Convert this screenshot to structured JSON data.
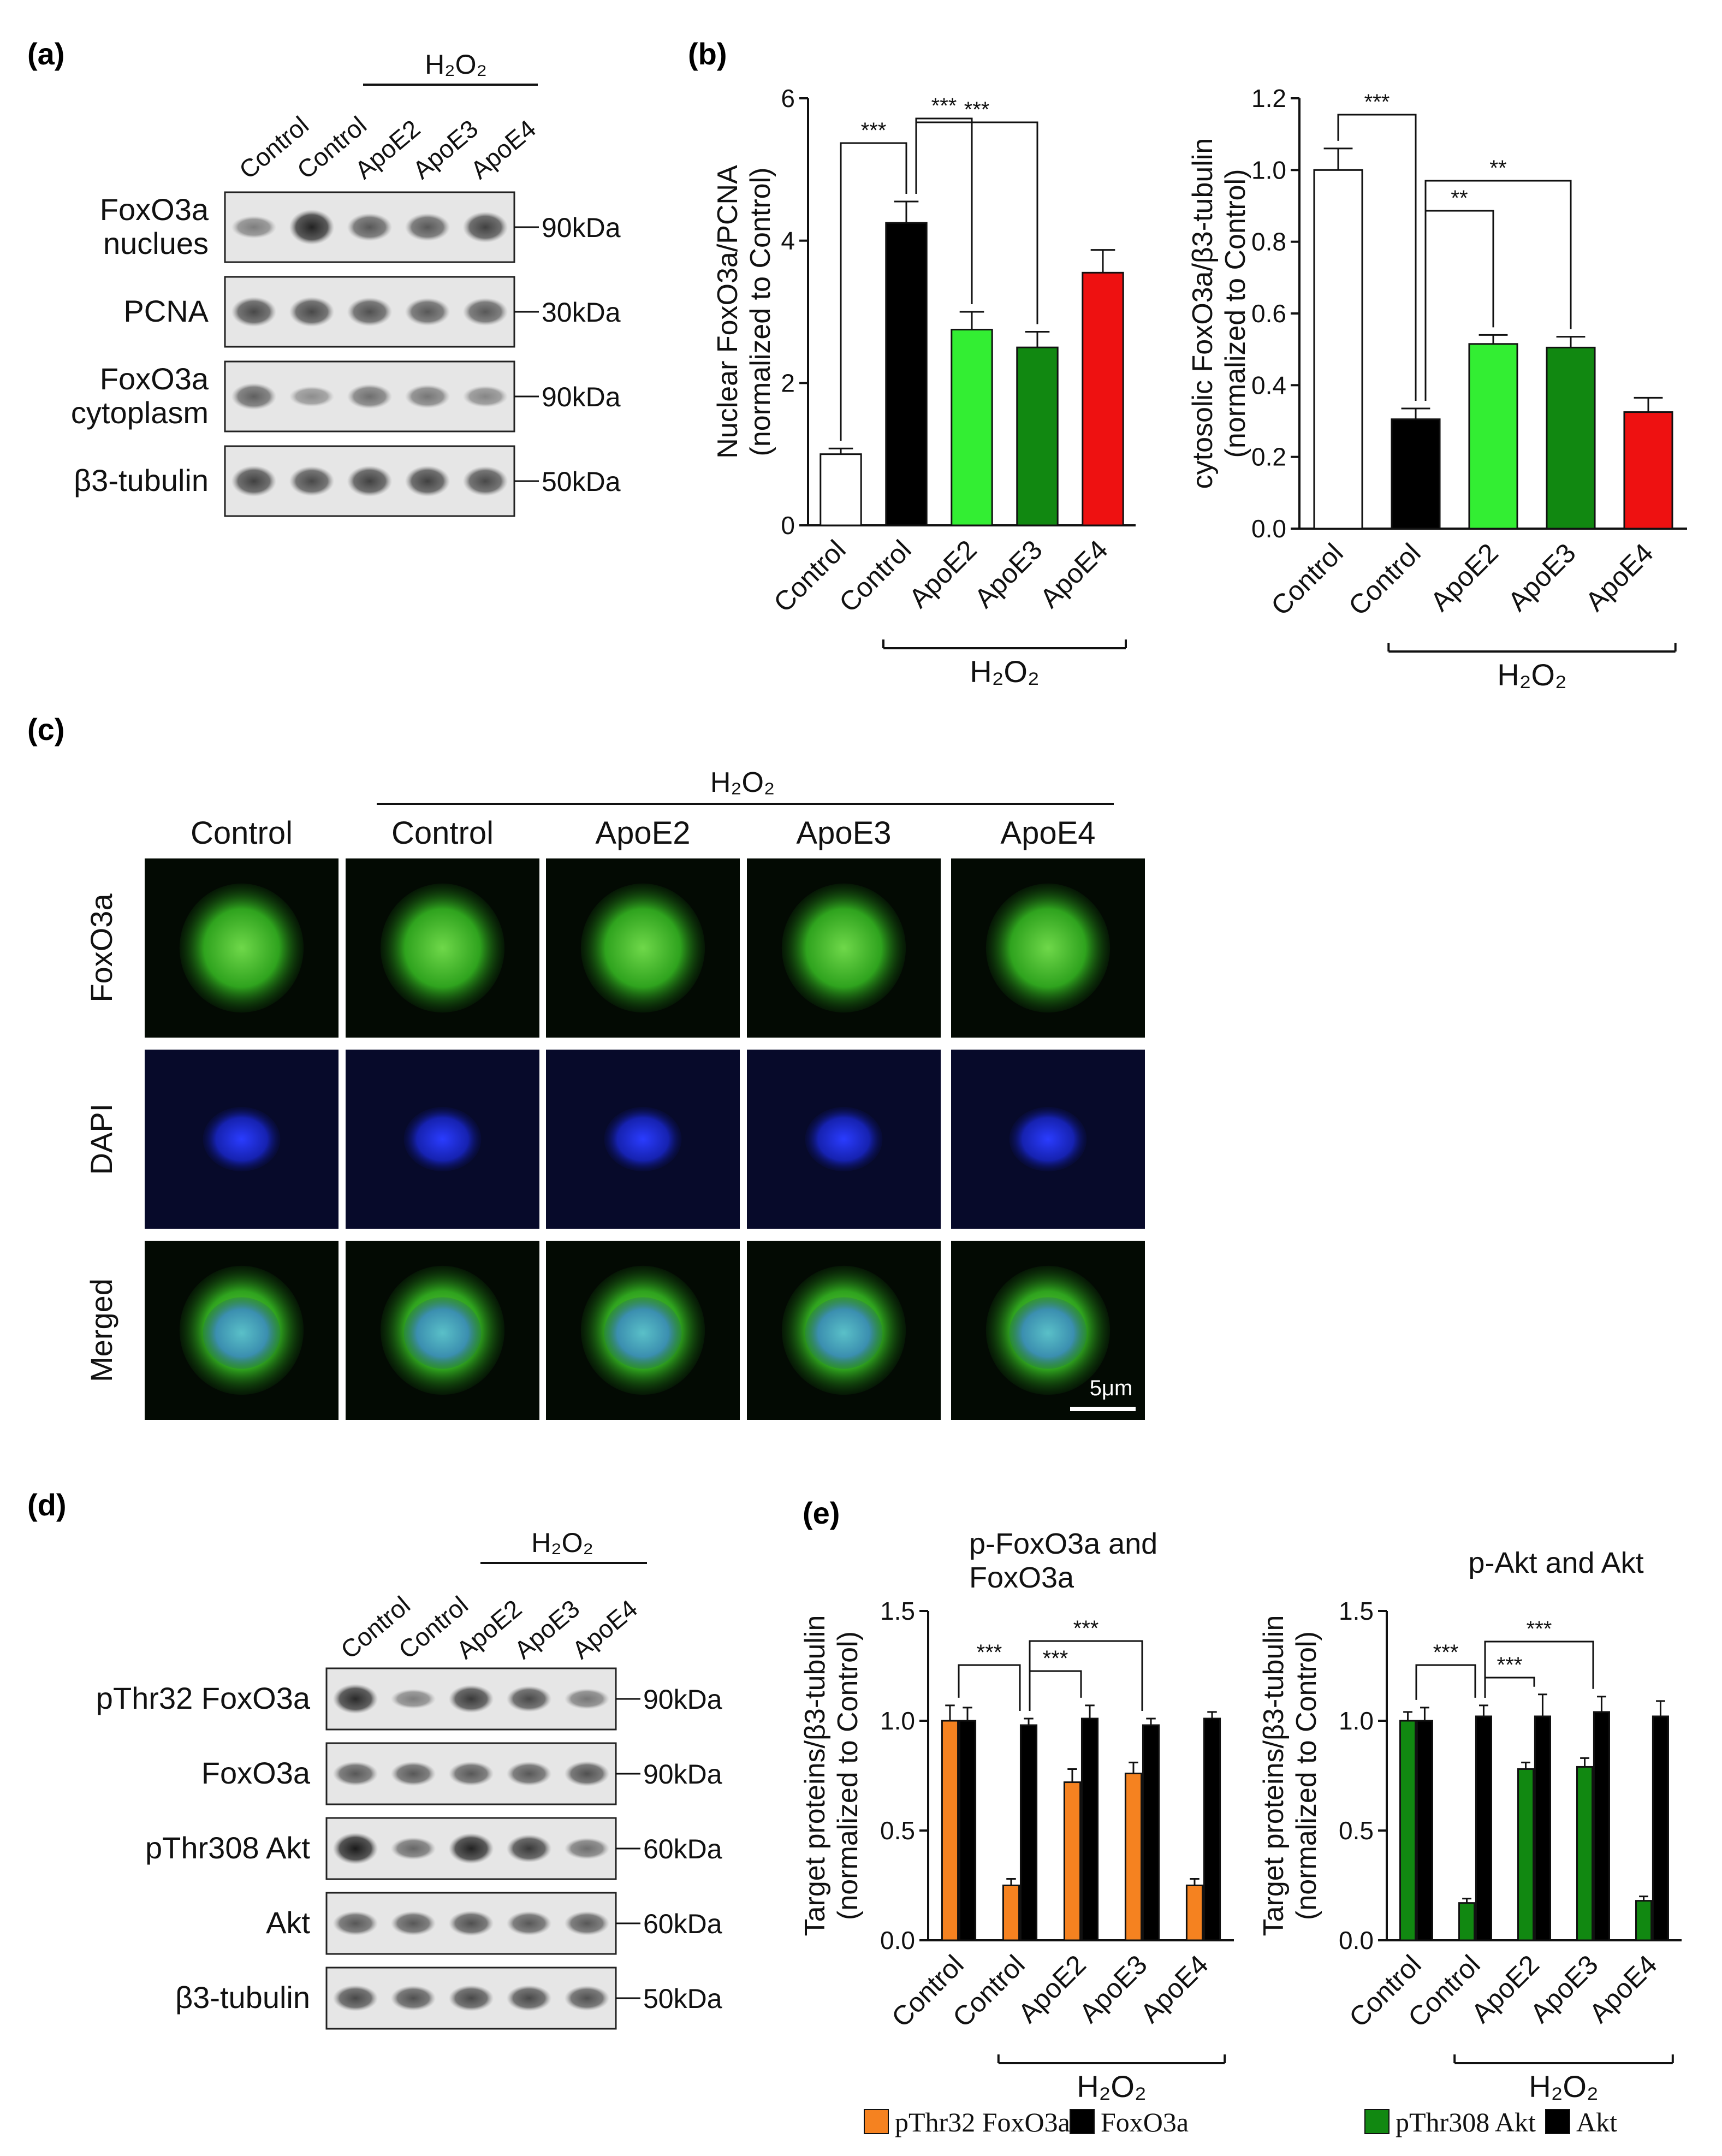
{
  "labels": {
    "a": "(a)",
    "b": "(b)",
    "c": "(c)",
    "d": "(d)",
    "e": "(e)",
    "h2o2": "H₂O₂",
    "scale_bar": "5μm"
  },
  "panel_a": {
    "lanes": [
      "Control",
      "Control",
      "ApoE2",
      "ApoE3",
      "ApoE4"
    ],
    "blots": [
      {
        "label": [
          "FoxO3a",
          "nuclues"
        ],
        "size": "90kDa"
      },
      {
        "label": [
          "PCNA"
        ],
        "size": "30kDa"
      },
      {
        "label": [
          "FoxO3a",
          "cytoplasm"
        ],
        "size": "90kDa"
      },
      {
        "label": [
          "β3-tubulin"
        ],
        "size": "50kDa"
      }
    ]
  },
  "panel_c": {
    "columns": [
      "Control",
      "Control",
      "ApoE2",
      "ApoE3",
      "ApoE4"
    ],
    "rows": [
      "FoxO3a",
      "DAPI",
      "Merged"
    ]
  },
  "panel_d": {
    "lanes": [
      "Control",
      "Control",
      "ApoE2",
      "ApoE3",
      "ApoE4"
    ],
    "blots": [
      {
        "label": "pThr32 FoxO3a",
        "size": "90kDa"
      },
      {
        "label": "FoxO3a",
        "size": "90kDa"
      },
      {
        "label": "pThr308 Akt",
        "size": "60kDa"
      },
      {
        "label": "Akt",
        "size": "60kDa"
      },
      {
        "label": "β3-tubulin",
        "size": "50kDa"
      }
    ]
  },
  "chart_data": [
    {
      "id": "b1",
      "type": "bar",
      "categories": [
        "Control",
        "Control",
        "ApoE2",
        "ApoE3",
        "ApoE4"
      ],
      "values": [
        1.0,
        4.25,
        2.75,
        2.5,
        3.55
      ],
      "errors": [
        0.08,
        0.3,
        0.25,
        0.22,
        0.32
      ],
      "colors": [
        "#ffffff",
        "#000000",
        "#33ee33",
        "#118811",
        "#ee1111"
      ],
      "ylabel": [
        "Nuclear FoxO3a/PCNA",
        "(normalized to Control)"
      ],
      "ylim": [
        0,
        6
      ],
      "yticks": [
        "0",
        "2",
        "4",
        "6"
      ],
      "group_label": "H₂O₂",
      "significance": [
        "***",
        "***",
        "***"
      ]
    },
    {
      "id": "b2",
      "type": "bar",
      "categories": [
        "Control",
        "Control",
        "ApoE2",
        "ApoE3",
        "ApoE4"
      ],
      "values": [
        1.0,
        0.305,
        0.515,
        0.505,
        0.325
      ],
      "errors": [
        0.06,
        0.03,
        0.025,
        0.03,
        0.04
      ],
      "colors": [
        "#ffffff",
        "#000000",
        "#33ee33",
        "#118811",
        "#ee1111"
      ],
      "ylabel": [
        "cytosolic FoxO3a/β3-tubulin",
        "(normalized to Control)"
      ],
      "ylim": [
        0,
        1.2
      ],
      "yticks": [
        "0.0",
        "0.2",
        "0.4",
        "0.6",
        "0.8",
        "1.0",
        "1.2"
      ],
      "group_label": "H₂O₂",
      "significance": [
        "***",
        "**",
        "**"
      ]
    },
    {
      "id": "e1",
      "type": "bar",
      "title": [
        "p-FoxO3a and",
        "FoxO3a"
      ],
      "categories": [
        "Control",
        "Control",
        "ApoE2",
        "ApoE3",
        "ApoE4"
      ],
      "series": [
        {
          "name": "pThr32 FoxO3a",
          "color": "#f58220",
          "values": [
            1.0,
            0.25,
            0.72,
            0.76,
            0.25
          ],
          "errors": [
            0.07,
            0.03,
            0.06,
            0.05,
            0.03
          ]
        },
        {
          "name": "FoxO3a",
          "color": "#000000",
          "values": [
            1.0,
            0.98,
            1.01,
            0.98,
            1.01
          ],
          "errors": [
            0.06,
            0.03,
            0.06,
            0.03,
            0.03
          ]
        }
      ],
      "ylabel": [
        "Target proteins/β3-tubulin",
        "(normalized to Control)"
      ],
      "ylim": [
        0,
        1.5
      ],
      "yticks": [
        "0.0",
        "0.5",
        "1.0",
        "1.5"
      ],
      "group_label": "H₂O₂",
      "significance": [
        "***",
        "***",
        "***"
      ]
    },
    {
      "id": "e2",
      "type": "bar",
      "title": [
        "p-Akt and Akt"
      ],
      "categories": [
        "Control",
        "Control",
        "ApoE2",
        "ApoE3",
        "ApoE4"
      ],
      "series": [
        {
          "name": "pThr308 Akt",
          "color": "#118811",
          "values": [
            1.0,
            0.17,
            0.78,
            0.79,
            0.18
          ],
          "errors": [
            0.04,
            0.02,
            0.03,
            0.04,
            0.02
          ]
        },
        {
          "name": "Akt",
          "color": "#000000",
          "values": [
            1.0,
            1.02,
            1.02,
            1.04,
            1.02
          ],
          "errors": [
            0.06,
            0.05,
            0.1,
            0.07,
            0.07
          ]
        }
      ],
      "ylabel": [
        "Target proteins/β3-tubulin",
        "(normalized to Control)"
      ],
      "ylim": [
        0,
        1.5
      ],
      "yticks": [
        "0.0",
        "0.5",
        "1.0",
        "1.5"
      ],
      "group_label": "H₂O₂",
      "significance": [
        "***",
        "***",
        "***"
      ]
    }
  ]
}
